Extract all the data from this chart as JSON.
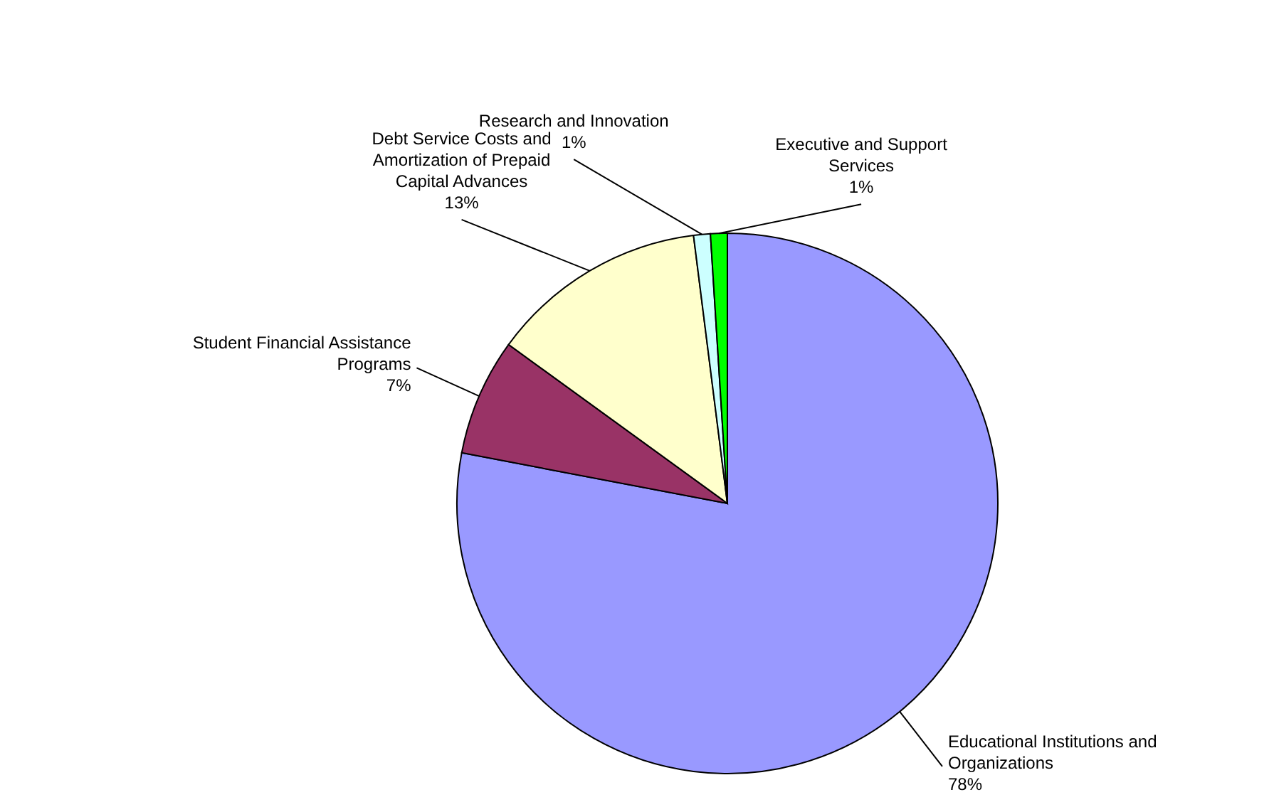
{
  "chart_data": {
    "type": "pie",
    "categories": [
      "Educational Institutions and Organizations",
      "Student Financial Assistance Programs",
      "Debt Service Costs and Amortization of Prepaid Capital Advances",
      "Research and Innovation",
      "Executive and Support Services"
    ],
    "values": [
      78,
      7,
      13,
      1,
      1
    ],
    "value_labels": [
      "78%",
      "7%",
      "13%",
      "1%",
      "1%"
    ],
    "colors": [
      "#9999ff",
      "#993366",
      "#ffffcc",
      "#ccffff",
      "#00ff00"
    ]
  }
}
